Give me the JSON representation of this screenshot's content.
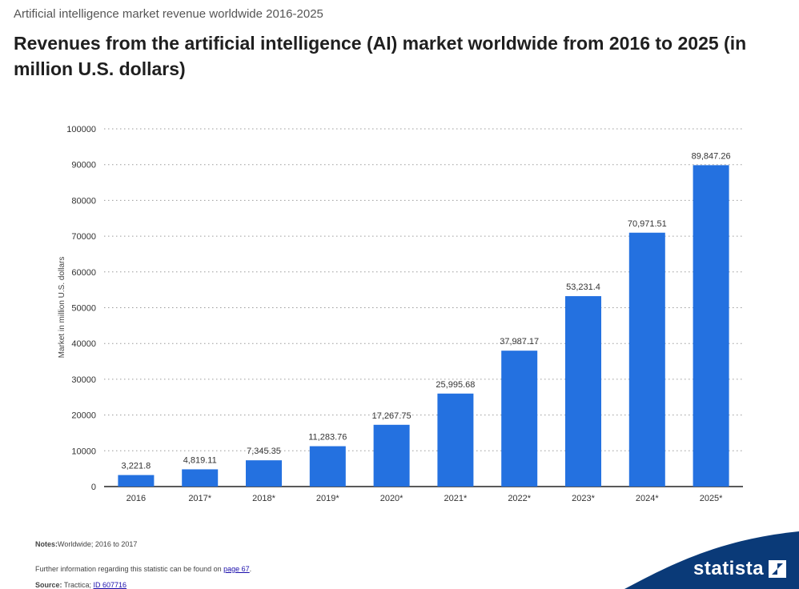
{
  "header": {
    "supertitle": "Artificial intelligence market revenue worldwide 2016-2025",
    "title": "Revenues from the artificial intelligence (AI) market worldwide from 2016 to 2025 (in million U.S. dollars)"
  },
  "chart_data": {
    "type": "bar",
    "title": "Revenues from the artificial intelligence (AI) market worldwide from 2016 to 2025 (in million U.S. dollars)",
    "xlabel": "",
    "ylabel": "Market in million U.S. dollars",
    "categories": [
      "2016",
      "2017*",
      "2018*",
      "2019*",
      "2020*",
      "2021*",
      "2022*",
      "2023*",
      "2024*",
      "2025*"
    ],
    "values": [
      3221.8,
      4819.11,
      7345.35,
      11283.76,
      17267.75,
      25995.68,
      37987.17,
      53231.4,
      70971.51,
      89847.26
    ],
    "value_labels": [
      "3,221.8",
      "4,819.11",
      "7,345.35",
      "11,283.76",
      "17,267.75",
      "25,995.68",
      "37,987.17",
      "53,231.4",
      "70,971.51",
      "89,847.26"
    ],
    "ylim": [
      0,
      100000
    ],
    "yticks": [
      "0",
      "10000",
      "20000",
      "30000",
      "40000",
      "50000",
      "60000",
      "70000",
      "80000",
      "90000",
      "100000"
    ],
    "grid": true,
    "bar_color": "#2471e0"
  },
  "footer": {
    "notes_label": "Notes:",
    "notes_text": "Worldwide; 2016 to 2017",
    "further_text": "Further information regarding this statistic can be found on ",
    "further_link": "page 67",
    "further_end": ".",
    "source_label": "Source:",
    "source_text": " Tractica; ",
    "source_link": "ID 607716"
  },
  "brand": {
    "name": "statista",
    "color": "#0a3a78"
  }
}
